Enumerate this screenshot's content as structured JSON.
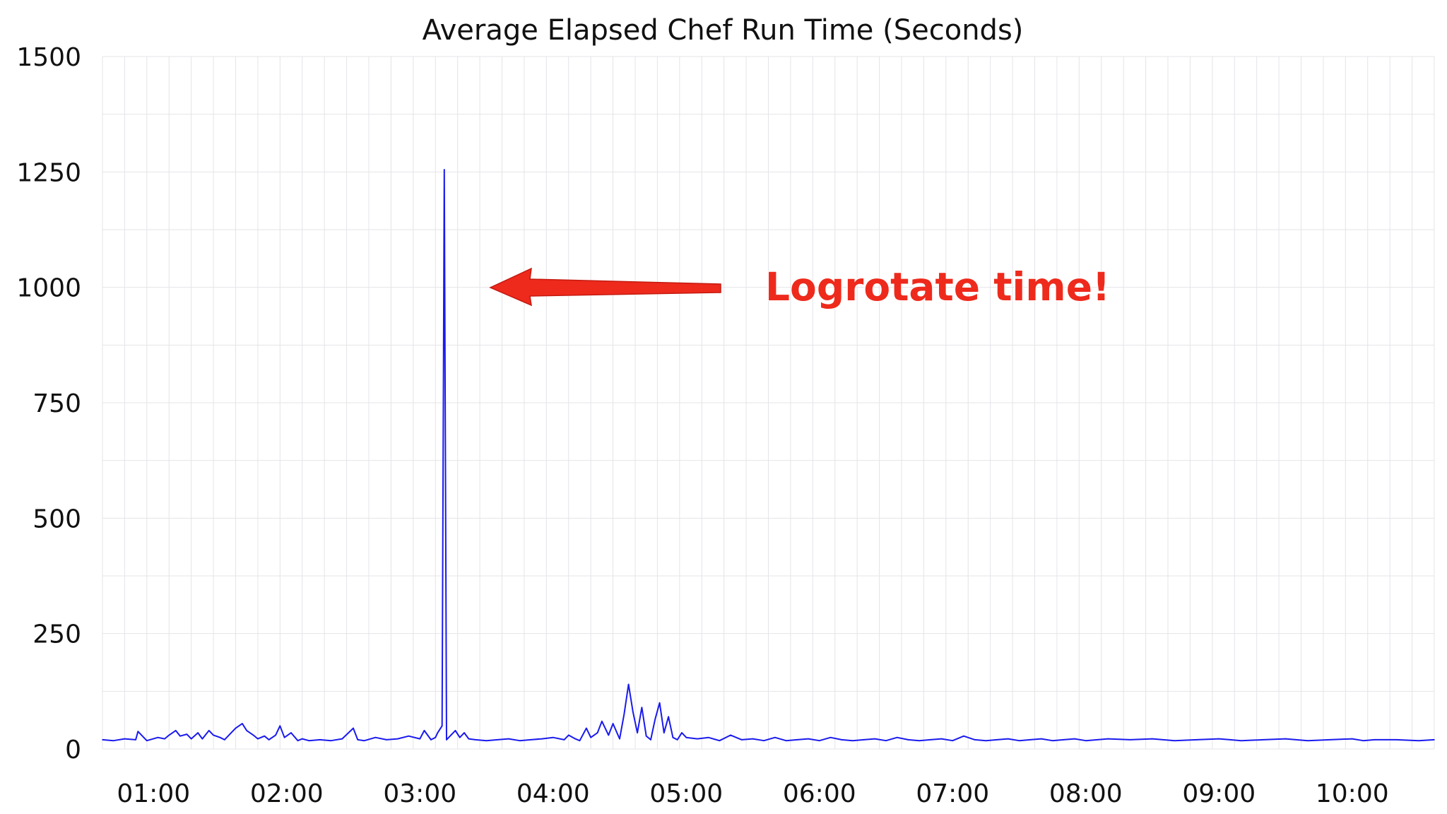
{
  "chart_data": {
    "type": "line",
    "title": "Average Elapsed Chef Run Time (Seconds)",
    "xlabel": "",
    "ylabel": "",
    "ylim": [
      0,
      1500
    ],
    "xlim": [
      "00:37",
      "10:37"
    ],
    "yticks": [
      "0",
      "250",
      "500",
      "750",
      "1000",
      "1250",
      "1500"
    ],
    "xticks": [
      "01:00",
      "02:00",
      "03:00",
      "04:00",
      "05:00",
      "06:00",
      "07:00",
      "08:00",
      "09:00",
      "10:00"
    ],
    "grid": true,
    "line_color": "#1a1aee",
    "series": [
      {
        "x": [
          "00:37",
          "00:42",
          "00:47",
          "00:52",
          "00:53",
          "00:57",
          "01:02",
          "01:05",
          "01:07",
          "01:10",
          "01:12",
          "01:15",
          "01:17",
          "01:20",
          "01:22",
          "01:25",
          "01:27",
          "01:30",
          "01:32",
          "01:35",
          "01:37",
          "01:40",
          "01:42",
          "01:45",
          "01:47",
          "01:50",
          "01:52",
          "01:55",
          "01:57",
          "01:59",
          "02:02",
          "02:05",
          "02:07",
          "02:10",
          "02:15",
          "02:20",
          "02:25",
          "02:30",
          "02:32",
          "02:35",
          "02:40",
          "02:45",
          "02:50",
          "02:55",
          "03:00",
          "03:02",
          "03:05",
          "03:07",
          "03:08",
          "03:10",
          "03:11",
          "03:12",
          "03:13",
          "03:14",
          "03:16",
          "03:18",
          "03:20",
          "03:22",
          "03:25",
          "03:30",
          "03:35",
          "03:40",
          "03:45",
          "03:50",
          "03:55",
          "04:00",
          "04:05",
          "04:07",
          "04:10",
          "04:12",
          "04:15",
          "04:17",
          "04:20",
          "04:22",
          "04:25",
          "04:27",
          "04:30",
          "04:32",
          "04:34",
          "04:36",
          "04:38",
          "04:40",
          "04:42",
          "04:44",
          "04:46",
          "04:48",
          "04:50",
          "04:52",
          "04:54",
          "04:56",
          "04:58",
          "05:00",
          "05:05",
          "05:10",
          "05:15",
          "05:20",
          "05:25",
          "05:30",
          "05:35",
          "05:40",
          "05:45",
          "05:50",
          "05:55",
          "06:00",
          "06:05",
          "06:10",
          "06:15",
          "06:20",
          "06:25",
          "06:30",
          "06:35",
          "06:40",
          "06:45",
          "06:50",
          "06:55",
          "07:00",
          "07:05",
          "07:10",
          "07:15",
          "07:20",
          "07:25",
          "07:30",
          "07:35",
          "07:40",
          "07:45",
          "07:50",
          "07:55",
          "08:00",
          "08:10",
          "08:20",
          "08:30",
          "08:40",
          "08:50",
          "09:00",
          "09:05",
          "09:10",
          "09:20",
          "09:30",
          "09:40",
          "09:50",
          "10:00",
          "10:05",
          "10:10",
          "10:20",
          "10:30",
          "10:37"
        ],
        "values": [
          20,
          18,
          22,
          20,
          38,
          18,
          25,
          22,
          30,
          40,
          28,
          32,
          22,
          35,
          22,
          40,
          30,
          25,
          20,
          35,
          45,
          55,
          40,
          30,
          22,
          28,
          20,
          30,
          50,
          25,
          35,
          18,
          22,
          18,
          20,
          18,
          22,
          45,
          20,
          18,
          25,
          20,
          22,
          28,
          22,
          40,
          20,
          25,
          35,
          50,
          1255,
          20,
          25,
          30,
          40,
          25,
          35,
          22,
          20,
          18,
          20,
          22,
          18,
          20,
          22,
          25,
          20,
          30,
          22,
          18,
          45,
          25,
          35,
          60,
          30,
          55,
          22,
          75,
          140,
          80,
          35,
          90,
          28,
          20,
          65,
          100,
          35,
          70,
          25,
          20,
          35,
          25,
          22,
          25,
          18,
          30,
          20,
          22,
          18,
          25,
          18,
          20,
          22,
          18,
          25,
          20,
          18,
          20,
          22,
          18,
          25,
          20,
          18,
          20,
          22,
          18,
          28,
          20,
          18,
          20,
          22,
          18,
          20,
          22,
          18,
          20,
          22,
          18,
          22,
          20,
          22,
          18,
          20,
          22,
          20,
          18,
          20,
          22,
          18,
          20,
          22,
          18,
          20,
          20,
          18,
          20
        ]
      }
    ],
    "annotation": {
      "text": "Logrotate time!",
      "color": "#ee2a1c",
      "points_to": {
        "x": "03:17",
        "y": 1000
      }
    }
  }
}
